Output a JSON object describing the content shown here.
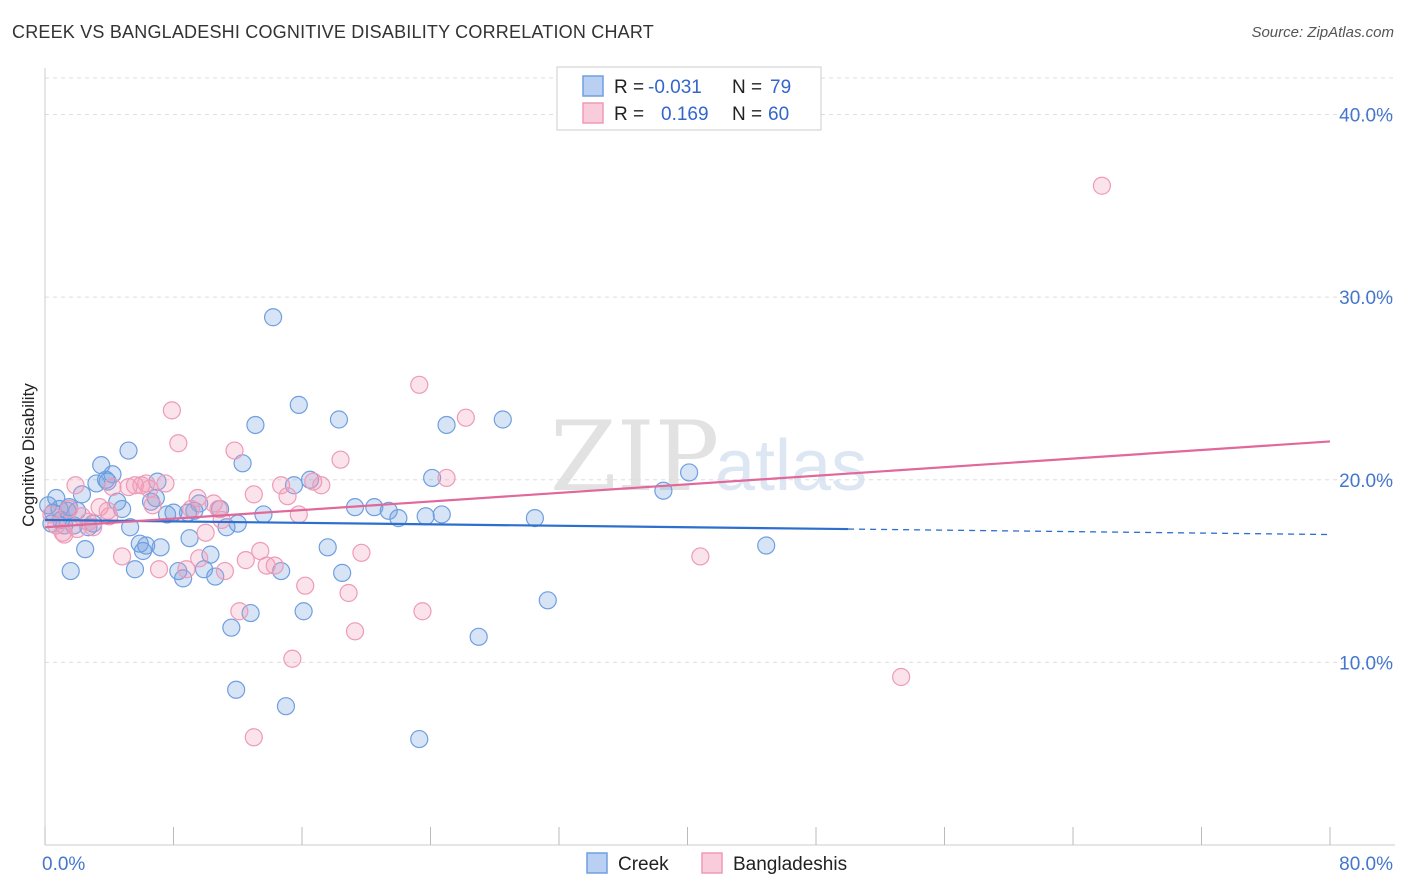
{
  "header": {
    "title": "CREEK VS BANGLADESHI COGNITIVE DISABILITY CORRELATION CHART",
    "source": "Source: ZipAtlas.com"
  },
  "watermark": {
    "zip": "ZIP",
    "atlas": "atlas"
  },
  "legend_top": {
    "rows": [
      {
        "r_label": "R =",
        "r_value": "-0.031",
        "n_label": "N =",
        "n_value": "79"
      },
      {
        "r_label": "R =",
        "r_value": "0.169",
        "n_label": "N =",
        "n_value": "60"
      }
    ]
  },
  "legend_bottom": {
    "items": [
      "Creek",
      "Bangladeshis"
    ]
  },
  "chart_data": {
    "type": "scatter",
    "title": "CREEK VS BANGLADESHI COGNITIVE DISABILITY CORRELATION CHART",
    "xlabel": "",
    "ylabel": "Cognitive Disability",
    "xlim": [
      0,
      80
    ],
    "ylim": [
      0,
      42
    ],
    "x_tick_labels": [
      "0.0%",
      "80.0%"
    ],
    "y_ticks": [
      10,
      20,
      30,
      40
    ],
    "y_tick_labels": [
      "10.0%",
      "20.0%",
      "30.0%",
      "40.0%"
    ],
    "colors": {
      "creek": "#6f9fe0",
      "creek_line": "#2d6fcd",
      "bangladeshis": "#ef9ab6",
      "bangladeshis_line": "#e0689a"
    },
    "series": [
      {
        "name": "Creek",
        "r": -0.031,
        "n": 79,
        "trend": {
          "x0": 0,
          "y0": 17.8,
          "x1": 50,
          "y1": 17.3,
          "dashed_to_x": 80,
          "dashed_to_y": 17.0
        },
        "points": [
          [
            0.2,
            18.6
          ],
          [
            0.4,
            17.6
          ],
          [
            0.5,
            18.2
          ],
          [
            0.7,
            19.0
          ],
          [
            0.9,
            18.4
          ],
          [
            1.0,
            17.8
          ],
          [
            1.2,
            17.5
          ],
          [
            1.4,
            18.3
          ],
          [
            1.5,
            18.5
          ],
          [
            1.6,
            15.0
          ],
          [
            1.8,
            17.5
          ],
          [
            2.0,
            18.3
          ],
          [
            2.3,
            19.2
          ],
          [
            2.5,
            16.2
          ],
          [
            2.7,
            17.4
          ],
          [
            3.0,
            17.6
          ],
          [
            3.2,
            19.8
          ],
          [
            3.5,
            20.8
          ],
          [
            3.9,
            19.9
          ],
          [
            4.2,
            20.3
          ],
          [
            4.5,
            18.8
          ],
          [
            4.8,
            18.4
          ],
          [
            5.3,
            17.4
          ],
          [
            5.6,
            15.1
          ],
          [
            5.9,
            16.5
          ],
          [
            6.1,
            16.1
          ],
          [
            6.3,
            16.4
          ],
          [
            6.6,
            18.8
          ],
          [
            6.9,
            19.0
          ],
          [
            7.2,
            16.3
          ],
          [
            7.6,
            18.1
          ],
          [
            8.0,
            18.2
          ],
          [
            8.3,
            15.0
          ],
          [
            8.6,
            14.6
          ],
          [
            8.9,
            18.2
          ],
          [
            9.3,
            18.3
          ],
          [
            9.6,
            18.7
          ],
          [
            9.9,
            15.1
          ],
          [
            10.3,
            15.9
          ],
          [
            10.6,
            14.7
          ],
          [
            10.9,
            18.4
          ],
          [
            11.3,
            17.4
          ],
          [
            11.6,
            11.9
          ],
          [
            11.9,
            8.5
          ],
          [
            12.3,
            20.9
          ],
          [
            12.8,
            12.7
          ],
          [
            13.1,
            23.0
          ],
          [
            13.6,
            18.1
          ],
          [
            14.2,
            28.9
          ],
          [
            14.7,
            15.0
          ],
          [
            15.0,
            7.6
          ],
          [
            15.5,
            19.7
          ],
          [
            15.8,
            24.1
          ],
          [
            16.1,
            12.8
          ],
          [
            16.5,
            20.0
          ],
          [
            17.6,
            16.3
          ],
          [
            18.3,
            23.3
          ],
          [
            18.5,
            14.9
          ],
          [
            19.3,
            18.5
          ],
          [
            20.5,
            18.5
          ],
          [
            21.4,
            18.3
          ],
          [
            22.0,
            17.9
          ],
          [
            23.3,
            5.8
          ],
          [
            23.7,
            18.0
          ],
          [
            24.1,
            20.1
          ],
          [
            24.7,
            18.1
          ],
          [
            25.0,
            23.0
          ],
          [
            27.0,
            11.4
          ],
          [
            28.5,
            23.3
          ],
          [
            30.5,
            17.9
          ],
          [
            31.3,
            13.4
          ],
          [
            38.5,
            19.4
          ],
          [
            40.1,
            20.4
          ],
          [
            44.9,
            16.4
          ],
          [
            3.8,
            20.0
          ],
          [
            5.2,
            21.6
          ],
          [
            7.0,
            19.9
          ],
          [
            9.0,
            16.8
          ],
          [
            12.0,
            17.6
          ]
        ]
      },
      {
        "name": "Bangladeshis",
        "r": 0.169,
        "n": 60,
        "trend": {
          "x0": 0,
          "y0": 17.4,
          "x1": 80,
          "y1": 22.1
        },
        "points": [
          [
            0.4,
            18.1
          ],
          [
            0.7,
            17.5
          ],
          [
            1.1,
            17.1
          ],
          [
            1.5,
            18.4
          ],
          [
            1.9,
            19.7
          ],
          [
            2.3,
            18.0
          ],
          [
            2.7,
            17.7
          ],
          [
            3.0,
            17.4
          ],
          [
            3.4,
            18.5
          ],
          [
            3.9,
            18.3
          ],
          [
            4.2,
            19.6
          ],
          [
            4.8,
            15.8
          ],
          [
            5.2,
            19.6
          ],
          [
            5.6,
            19.7
          ],
          [
            6.0,
            19.7
          ],
          [
            6.3,
            19.8
          ],
          [
            6.7,
            18.6
          ],
          [
            7.1,
            15.1
          ],
          [
            7.5,
            19.8
          ],
          [
            7.9,
            23.8
          ],
          [
            8.3,
            22.0
          ],
          [
            8.8,
            15.1
          ],
          [
            9.1,
            18.4
          ],
          [
            9.6,
            15.7
          ],
          [
            10.0,
            17.1
          ],
          [
            10.5,
            18.7
          ],
          [
            10.8,
            18.4
          ],
          [
            11.2,
            15.0
          ],
          [
            11.8,
            21.6
          ],
          [
            12.1,
            12.8
          ],
          [
            12.5,
            15.6
          ],
          [
            13.0,
            5.9
          ],
          [
            13.4,
            16.1
          ],
          [
            13.8,
            15.3
          ],
          [
            14.3,
            15.3
          ],
          [
            14.7,
            19.7
          ],
          [
            15.1,
            19.1
          ],
          [
            15.4,
            10.2
          ],
          [
            15.8,
            18.1
          ],
          [
            16.2,
            14.2
          ],
          [
            16.7,
            19.9
          ],
          [
            17.2,
            19.7
          ],
          [
            18.4,
            21.1
          ],
          [
            18.9,
            13.8
          ],
          [
            19.3,
            11.7
          ],
          [
            19.7,
            16.0
          ],
          [
            23.3,
            25.2
          ],
          [
            23.5,
            12.8
          ],
          [
            25.0,
            20.1
          ],
          [
            26.2,
            23.4
          ],
          [
            40.8,
            15.8
          ],
          [
            53.3,
            9.2
          ],
          [
            65.8,
            36.1
          ],
          [
            1.2,
            17.0
          ],
          [
            2.0,
            17.3
          ],
          [
            4.0,
            18.0
          ],
          [
            6.5,
            19.5
          ],
          [
            9.5,
            19.0
          ],
          [
            11.0,
            17.8
          ],
          [
            13.0,
            19.2
          ]
        ]
      }
    ]
  }
}
